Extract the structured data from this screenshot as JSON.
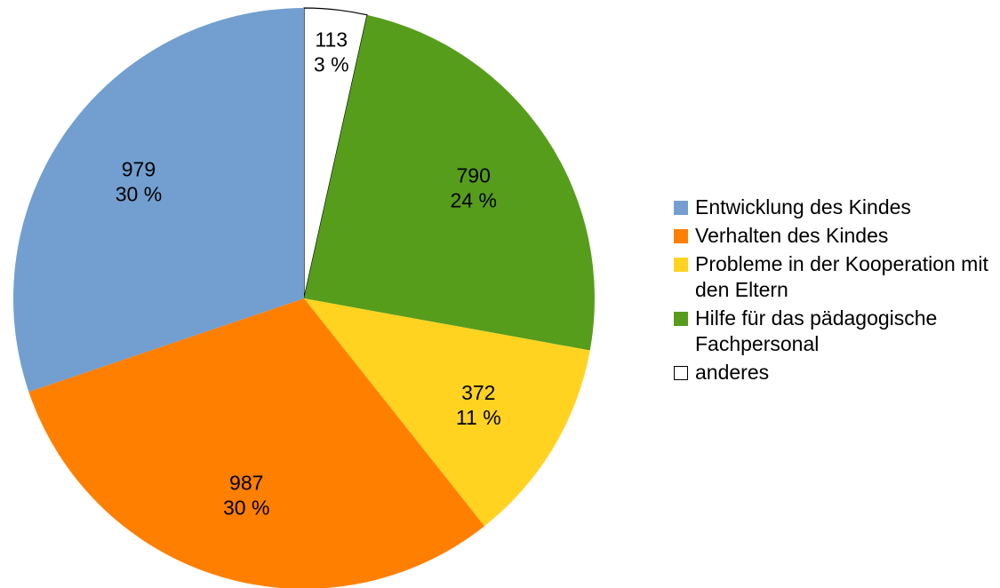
{
  "chart_data": {
    "type": "pie",
    "title": "",
    "slices": [
      {
        "label": "Entwicklung des Kindes",
        "value": 979,
        "percent_label": "30 %",
        "color": "#729fcf"
      },
      {
        "label": "Verhalten des Kindes",
        "value": 987,
        "percent_label": "30 %",
        "color": "#ff7f00"
      },
      {
        "label": "Probleme in der Kooperation mit den Eltern",
        "value": 372,
        "percent_label": "11 %",
        "color": "#ffd320"
      },
      {
        "label": "Hilfe für das pädagogische Fachpersonal",
        "value": 790,
        "percent_label": "24 %",
        "color": "#579d1c"
      },
      {
        "label": "anderes",
        "value": 113,
        "percent_label": "3 %",
        "color": "#ffffff"
      }
    ],
    "slice_order_clockwise_from_top": [
      "anderes",
      "Hilfe für das pädagogische Fachpersonal",
      "Probleme in der Kooperation mit den Eltern",
      "Verhalten des Kindes",
      "Entwicklung des Kindes"
    ],
    "legend_position": "right"
  },
  "legend": {
    "items": [
      {
        "label": "Entwicklung des Kindes",
        "color": "#729fcf"
      },
      {
        "label": "Verhalten des Kindes",
        "color": "#ff7f00"
      },
      {
        "label": "Probleme in der Kooperation mit den Eltern",
        "color": "#ffd320"
      },
      {
        "label": "Hilfe für das pädagogische Fachpersonal",
        "color": "#579d1c"
      },
      {
        "label": "anderes",
        "color": "#ffffff"
      }
    ]
  }
}
